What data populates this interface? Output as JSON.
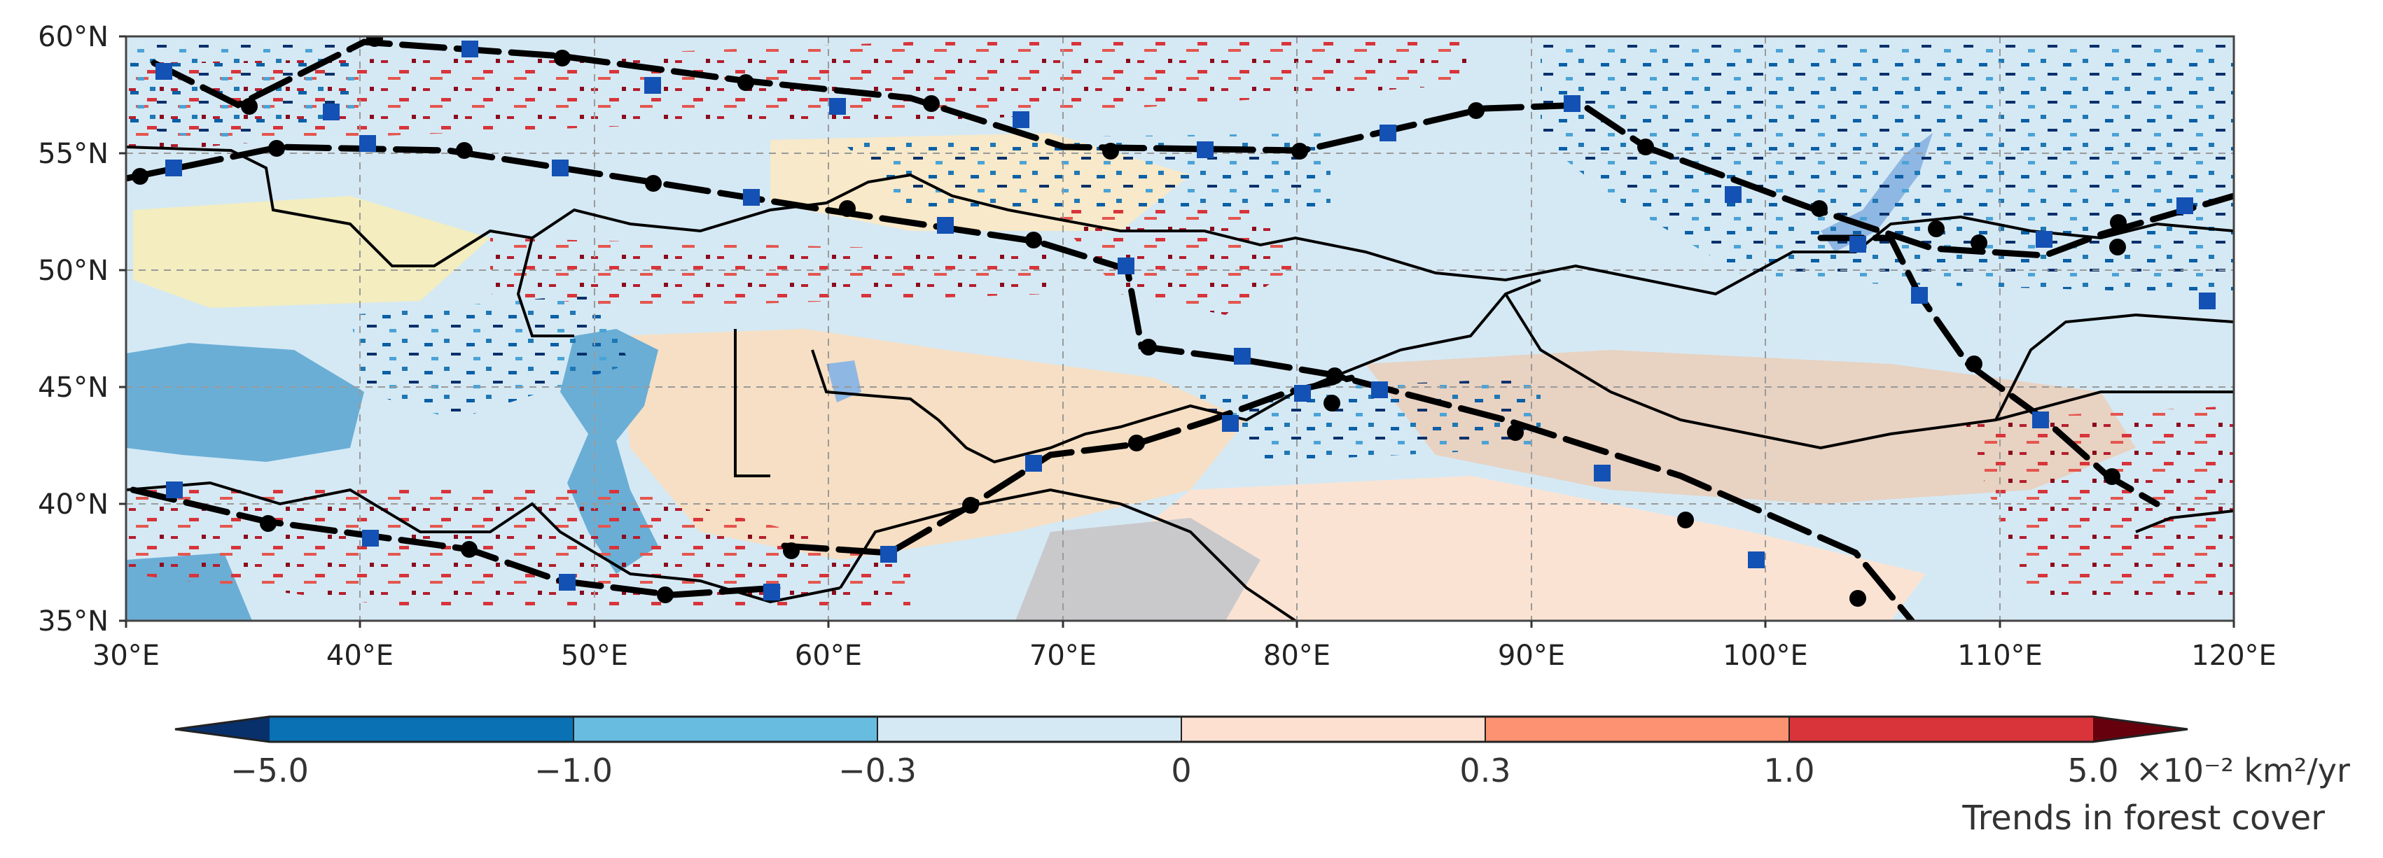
{
  "map": {
    "lon_ticks": [
      "30°E",
      "40°E",
      "50°E",
      "60°E",
      "70°E",
      "80°E",
      "90°E",
      "100°E",
      "110°E",
      "120°E"
    ],
    "lat_ticks": [
      "60°N",
      "55°N",
      "50°N",
      "45°N",
      "40°N",
      "35°N"
    ],
    "lon_range": [
      30,
      120
    ],
    "lat_range": [
      35,
      60
    ],
    "gridlines": true
  },
  "colorbar": {
    "tick_labels": [
      "−5.0",
      "−1.0",
      "−0.3",
      "0",
      "0.3",
      "1.0",
      "5.0"
    ],
    "unit_label": "×10⁻² km²/yr",
    "caption": "Trends in forest cover",
    "colors": [
      "#08306b",
      "#0a71b4",
      "#67bce0",
      "#d5e9f4",
      "#fde0d0",
      "#fc9272",
      "#d8343a",
      "#67000d"
    ]
  },
  "routes": {
    "line_color": "#000000",
    "circle_marker_color": "#000000",
    "square_marker_color": "#1351b4"
  }
}
